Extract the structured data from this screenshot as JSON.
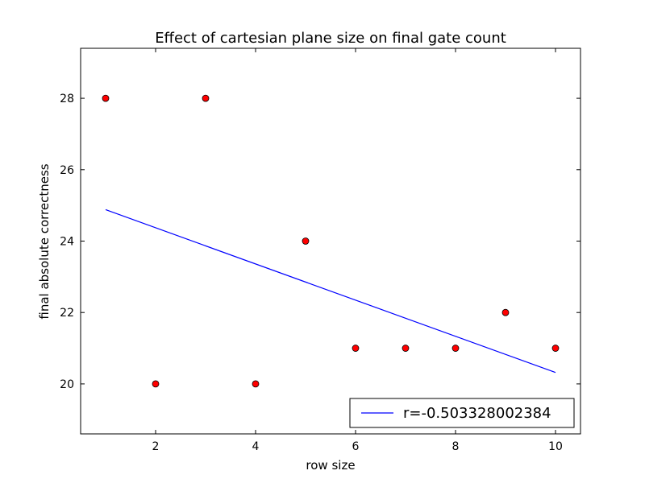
{
  "chart_data": {
    "type": "scatter",
    "title": "Effect of cartesian plane size on final gate count",
    "xlabel": "row size",
    "ylabel": "final absolute correctness",
    "xlim": [
      0.5,
      10.5
    ],
    "ylim": [
      18.6,
      29.4
    ],
    "xticks": [
      2,
      4,
      6,
      8,
      10
    ],
    "yticks": [
      20,
      22,
      24,
      26,
      28
    ],
    "grid": false,
    "legend_position": "lower-right",
    "series": [
      {
        "type": "scatter",
        "color": "#ff0000",
        "points": [
          {
            "x": 1,
            "y": 28
          },
          {
            "x": 2,
            "y": 20
          },
          {
            "x": 3,
            "y": 28
          },
          {
            "x": 4,
            "y": 20
          },
          {
            "x": 5,
            "y": 24
          },
          {
            "x": 6,
            "y": 21
          },
          {
            "x": 7,
            "y": 21
          },
          {
            "x": 8,
            "y": 21
          },
          {
            "x": 9,
            "y": 22
          },
          {
            "x": 10,
            "y": 21
          }
        ]
      },
      {
        "type": "line",
        "name": "r=-0.503328002384",
        "color": "#0000ff",
        "points": [
          {
            "x": 1,
            "y": 24.88
          },
          {
            "x": 10,
            "y": 20.32
          }
        ]
      }
    ]
  }
}
